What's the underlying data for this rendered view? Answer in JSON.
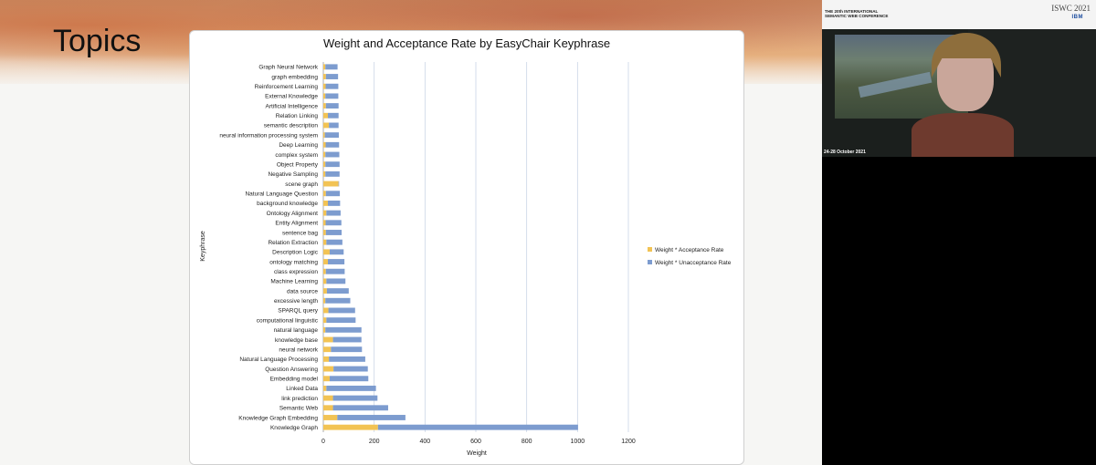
{
  "slide": {
    "title": "Topics"
  },
  "conference": {
    "name": "THE 20th INTERNATIONAL SEMANTIC WEB CONFERENCE",
    "short": "ISWC 2021",
    "sponsor": "IBM",
    "dates": "24-28 October 2021"
  },
  "chart_data": {
    "type": "bar",
    "orientation": "horizontal",
    "stacked": true,
    "title": "Weight and Acceptance Rate by EasyChair Keyphrase",
    "xlabel": "Weight",
    "ylabel": "Keyphrase",
    "xlim": [
      0,
      1200
    ],
    "xticks": [
      0,
      200,
      400,
      600,
      800,
      1000,
      1200
    ],
    "grid": "vertical",
    "legend_position": "right",
    "categories": [
      "Graph Neural Network",
      "graph embedding",
      "Reinforcement Learning",
      "External Knowledge",
      "Artificial Intelligence",
      "Relation Linking",
      "semantic description",
      "neural information processing system",
      "Deep Learning",
      "complex system",
      "Object Property",
      "Negative Sampling",
      "scene graph",
      "Natural Language Question",
      "background knowledge",
      "Ontology Alignment",
      "Entity Alignment",
      "sentence bag",
      "Relation Extraction",
      "Description Logic",
      "ontology matching",
      "class expression",
      "Machine Learning",
      "data source",
      "excessive length",
      "SPARQL query",
      "computational linguistic",
      "natural language",
      "knowledge base",
      "neural network",
      "Natural Language Processing",
      "Question Answering",
      "Embedding model",
      "Linked Data",
      "link prediction",
      "Semantic Web",
      "Knowledge Graph Embedding",
      "Knowledge Graph"
    ],
    "series": [
      {
        "name": "Weight * Acceptance Rate",
        "color": "#f2c354",
        "values": [
          8,
          10,
          9,
          8,
          10,
          18,
          22,
          6,
          9,
          8,
          8,
          8,
          60,
          10,
          18,
          12,
          9,
          10,
          12,
          25,
          18,
          10,
          12,
          14,
          8,
          20,
          12,
          8,
          38,
          30,
          22,
          40,
          25,
          12,
          38,
          38,
          55,
          215
        ]
      },
      {
        "name": "Weight * Unacceptance Rate",
        "color": "#7d9ccf",
        "values": [
          48,
          48,
          50,
          51,
          50,
          42,
          38,
          55,
          53,
          55,
          56,
          56,
          2,
          55,
          48,
          56,
          62,
          62,
          63,
          55,
          65,
          74,
          75,
          86,
          98,
          105,
          115,
          142,
          112,
          122,
          143,
          135,
          152,
          195,
          175,
          217,
          268,
          787
        ]
      }
    ]
  }
}
